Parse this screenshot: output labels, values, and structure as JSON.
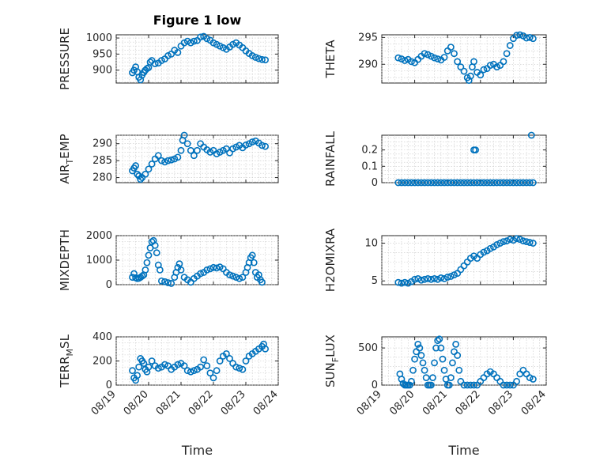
{
  "figure": {
    "title": "Figure 1 low",
    "marker_color": "#0072BD"
  },
  "chart_data": [
    {
      "type": "scatter",
      "ylabel": "PRESSURE",
      "ylim": [
        860,
        1010
      ],
      "yticks": [
        900,
        950,
        1000
      ],
      "xlim": [
        0,
        5
      ],
      "xlabel": "",
      "grid": true,
      "title": "Figure 1 low",
      "series": [
        {
          "x": [
            0.5,
            0.55,
            0.6,
            0.65,
            0.7,
            0.75,
            0.8,
            0.85,
            0.9,
            0.95,
            1.0,
            1.05,
            1.1,
            1.2,
            1.3,
            1.4,
            1.5,
            1.6,
            1.7,
            1.8,
            1.9,
            2.0,
            2.1,
            2.2,
            2.3,
            2.4,
            2.5,
            2.6,
            2.7,
            2.8,
            2.9,
            3.0,
            3.1,
            3.2,
            3.3,
            3.4,
            3.5,
            3.6,
            3.7,
            3.8,
            3.9,
            4.0,
            4.1,
            4.2,
            4.3,
            4.4,
            4.5,
            4.6
          ],
          "y": [
            892,
            900,
            910,
            895,
            878,
            870,
            885,
            893,
            900,
            905,
            908,
            925,
            930,
            920,
            922,
            930,
            935,
            945,
            950,
            962,
            955,
            975,
            985,
            990,
            985,
            990,
            992,
            1003,
            1005,
            998,
            993,
            985,
            980,
            975,
            970,
            965,
            972,
            980,
            985,
            978,
            970,
            960,
            952,
            945,
            940,
            936,
            933,
            932
          ]
        }
      ]
    },
    {
      "type": "scatter",
      "ylabel": "THETA",
      "ylim": [
        286.5,
        295.5
      ],
      "yticks": [
        290,
        295
      ],
      "xlim": [
        0,
        5
      ],
      "xlabel": "",
      "grid": true,
      "series": [
        {
          "x": [
            0.5,
            0.6,
            0.7,
            0.8,
            0.9,
            1.0,
            1.1,
            1.2,
            1.3,
            1.4,
            1.5,
            1.6,
            1.7,
            1.8,
            1.9,
            2.0,
            2.1,
            2.2,
            2.3,
            2.4,
            2.5,
            2.6,
            2.65,
            2.7,
            2.75,
            2.8,
            2.9,
            3.0,
            3.1,
            3.2,
            3.3,
            3.4,
            3.5,
            3.6,
            3.7,
            3.8,
            3.9,
            4.0,
            4.1,
            4.2,
            4.3,
            4.4,
            4.5,
            4.6
          ],
          "y": [
            291.2,
            291.0,
            290.7,
            290.9,
            290.5,
            290.3,
            290.9,
            291.5,
            292.0,
            291.8,
            291.5,
            291.2,
            291.0,
            290.8,
            291.3,
            292.5,
            293.2,
            292.0,
            290.5,
            289.5,
            288.7,
            287.5,
            287.0,
            287.8,
            289.5,
            290.5,
            288.5,
            288.0,
            289.0,
            289.2,
            289.8,
            290.0,
            289.5,
            289.8,
            290.5,
            292.0,
            293.5,
            294.8,
            295.4,
            295.5,
            295.3,
            294.9,
            295.0,
            294.8
          ]
        }
      ]
    },
    {
      "type": "scatter",
      "ylabel": "AIR_TEMP",
      "ylim": [
        278.5,
        292.5
      ],
      "yticks": [
        280,
        285,
        290
      ],
      "xlim": [
        0,
        5
      ],
      "xlabel": "",
      "grid": true,
      "series": [
        {
          "x": [
            0.5,
            0.55,
            0.6,
            0.65,
            0.7,
            0.75,
            0.8,
            0.9,
            1.0,
            1.1,
            1.2,
            1.3,
            1.4,
            1.5,
            1.6,
            1.7,
            1.8,
            1.9,
            2.0,
            2.05,
            2.1,
            2.2,
            2.3,
            2.4,
            2.5,
            2.6,
            2.7,
            2.8,
            2.9,
            3.0,
            3.1,
            3.2,
            3.3,
            3.4,
            3.5,
            3.6,
            3.7,
            3.8,
            3.9,
            4.0,
            4.1,
            4.2,
            4.3,
            4.4,
            4.5,
            4.6
          ],
          "y": [
            282,
            282.8,
            283.5,
            281,
            280.5,
            279.5,
            280,
            281,
            282.5,
            284,
            285.5,
            286.5,
            285,
            284.6,
            285,
            285.2,
            285.5,
            286,
            288,
            291,
            292.5,
            290,
            288,
            286.5,
            288,
            290,
            289,
            288.2,
            287.5,
            288,
            287,
            287.5,
            288,
            288.5,
            287.3,
            288.5,
            289,
            289.5,
            288.8,
            289.6,
            290,
            290.5,
            290.8,
            290.2,
            289.5,
            289.2
          ]
        }
      ]
    },
    {
      "type": "scatter",
      "ylabel": "RAINFALL",
      "ylim": [
        0,
        0.29
      ],
      "yticks": [
        0,
        0.1,
        0.2
      ],
      "xlim": [
        0,
        5
      ],
      "xlabel": "",
      "grid": true,
      "series": [
        {
          "x": [
            0.5,
            0.6,
            0.7,
            0.8,
            0.9,
            1.0,
            1.1,
            1.2,
            1.3,
            1.4,
            1.5,
            1.6,
            1.7,
            1.8,
            1.9,
            2.0,
            2.1,
            2.2,
            2.3,
            2.4,
            2.5,
            2.6,
            2.7,
            2.8,
            2.9,
            3.0,
            3.1,
            3.2,
            3.3,
            3.4,
            3.5,
            3.6,
            3.7,
            3.8,
            3.9,
            4.0,
            4.1,
            4.2,
            4.3,
            4.4,
            4.5,
            4.6,
            2.8,
            2.85,
            4.55
          ],
          "y": [
            0,
            0,
            0,
            0,
            0,
            0,
            0,
            0,
            0,
            0,
            0,
            0,
            0,
            0,
            0,
            0,
            0,
            0,
            0,
            0,
            0,
            0,
            0,
            0,
            0,
            0,
            0,
            0,
            0,
            0,
            0,
            0,
            0,
            0,
            0,
            0,
            0,
            0,
            0,
            0,
            0,
            0,
            0.2,
            0.2,
            0.29
          ]
        }
      ]
    },
    {
      "type": "scatter",
      "ylabel": "MIXDEPTH",
      "ylim": [
        0,
        2000
      ],
      "yticks": [
        0,
        1000,
        2000
      ],
      "xlim": [
        0,
        5
      ],
      "xlabel": "",
      "grid": true,
      "series": [
        {
          "x": [
            0.5,
            0.55,
            0.6,
            0.65,
            0.7,
            0.75,
            0.8,
            0.85,
            0.9,
            0.95,
            1.0,
            1.05,
            1.1,
            1.15,
            1.2,
            1.25,
            1.3,
            1.35,
            1.4,
            1.5,
            1.6,
            1.7,
            1.8,
            1.85,
            1.9,
            1.95,
            2.0,
            2.1,
            2.2,
            2.3,
            2.4,
            2.5,
            2.6,
            2.7,
            2.8,
            2.9,
            3.0,
            3.1,
            3.2,
            3.3,
            3.4,
            3.5,
            3.6,
            3.7,
            3.8,
            3.9,
            4.0,
            4.05,
            4.1,
            4.15,
            4.2,
            4.25,
            4.3,
            4.35,
            4.4,
            4.45,
            4.5
          ],
          "y": [
            300,
            450,
            280,
            250,
            260,
            300,
            350,
            400,
            600,
            900,
            1200,
            1500,
            1750,
            1800,
            1600,
            1300,
            800,
            600,
            150,
            120,
            80,
            50,
            300,
            500,
            700,
            850,
            600,
            300,
            200,
            100,
            250,
            350,
            450,
            500,
            600,
            650,
            700,
            680,
            720,
            650,
            500,
            400,
            350,
            300,
            250,
            300,
            500,
            700,
            900,
            1100,
            1200,
            900,
            500,
            300,
            400,
            200,
            100
          ]
        }
      ]
    },
    {
      "type": "scatter",
      "ylabel": "H2OMIXRA",
      "ylim": [
        4.5,
        11
      ],
      "yticks": [
        5,
        10
      ],
      "xlim": [
        0,
        5
      ],
      "xlabel": "",
      "grid": true,
      "series": [
        {
          "x": [
            0.5,
            0.6,
            0.7,
            0.8,
            0.9,
            1.0,
            1.1,
            1.2,
            1.3,
            1.4,
            1.5,
            1.6,
            1.7,
            1.8,
            1.9,
            2.0,
            2.1,
            2.2,
            2.3,
            2.4,
            2.5,
            2.6,
            2.7,
            2.8,
            2.9,
            3.0,
            3.1,
            3.2,
            3.3,
            3.4,
            3.5,
            3.6,
            3.7,
            3.8,
            3.9,
            4.0,
            4.1,
            4.2,
            4.3,
            4.4,
            4.5,
            4.6
          ],
          "y": [
            4.8,
            4.7,
            4.8,
            4.7,
            4.9,
            5.2,
            5.3,
            5.1,
            5.2,
            5.3,
            5.2,
            5.3,
            5.2,
            5.4,
            5.3,
            5.5,
            5.6,
            5.8,
            6.0,
            6.5,
            7.0,
            7.5,
            8.0,
            8.3,
            8.0,
            8.5,
            8.8,
            9.0,
            9.3,
            9.5,
            9.8,
            10.0,
            10.2,
            10.3,
            10.5,
            10.4,
            10.6,
            10.5,
            10.3,
            10.2,
            10.1,
            10.0
          ]
        }
      ]
    },
    {
      "type": "scatter",
      "ylabel": "TERR_MSL",
      "ylim": [
        0,
        400
      ],
      "yticks": [
        0,
        200,
        400
      ],
      "xlim": [
        0,
        5
      ],
      "xlabel": "Time",
      "xticks": [
        "08/19",
        "08/20",
        "08/21",
        "08/22",
        "08/23",
        "08/24"
      ],
      "grid": true,
      "series": [
        {
          "x": [
            0.5,
            0.55,
            0.6,
            0.65,
            0.7,
            0.75,
            0.8,
            0.85,
            0.9,
            0.95,
            1.0,
            1.1,
            1.2,
            1.3,
            1.4,
            1.5,
            1.6,
            1.7,
            1.8,
            1.9,
            2.0,
            2.1,
            2.2,
            2.3,
            2.4,
            2.5,
            2.6,
            2.7,
            2.8,
            2.9,
            3.0,
            3.1,
            3.2,
            3.3,
            3.4,
            3.5,
            3.6,
            3.7,
            3.8,
            3.9,
            4.0,
            4.1,
            4.2,
            4.3,
            4.4,
            4.5,
            4.55,
            4.6
          ],
          "y": [
            120,
            60,
            40,
            80,
            150,
            220,
            200,
            180,
            130,
            110,
            150,
            200,
            160,
            140,
            150,
            170,
            160,
            130,
            150,
            170,
            180,
            160,
            120,
            110,
            120,
            130,
            150,
            210,
            160,
            100,
            60,
            120,
            200,
            240,
            260,
            220,
            180,
            150,
            140,
            130,
            200,
            240,
            260,
            280,
            300,
            320,
            340,
            300
          ]
        }
      ]
    },
    {
      "type": "scatter",
      "ylabel": "SUN_FLUX",
      "ylim": [
        0,
        650
      ],
      "yticks": [
        0,
        500
      ],
      "xlim": [
        0,
        5
      ],
      "xlabel": "Time",
      "xticks": [
        "08/19",
        "08/20",
        "08/21",
        "08/22",
        "08/23",
        "08/24"
      ],
      "grid": true,
      "series": [
        {
          "x": [
            0.55,
            0.6,
            0.65,
            0.7,
            0.75,
            0.8,
            0.85,
            0.9,
            0.95,
            1.0,
            1.05,
            1.1,
            1.15,
            1.2,
            1.25,
            1.3,
            1.35,
            1.4,
            1.45,
            1.5,
            1.55,
            1.6,
            1.65,
            1.7,
            1.75,
            1.8,
            1.85,
            1.9,
            1.95,
            2.0,
            2.05,
            2.1,
            2.15,
            2.2,
            2.25,
            2.3,
            2.35,
            2.4,
            2.5,
            2.6,
            2.7,
            2.8,
            2.9,
            3.0,
            3.1,
            3.2,
            3.3,
            3.4,
            3.5,
            3.6,
            3.7,
            3.8,
            3.9,
            4.0,
            4.1,
            4.2,
            4.3,
            4.4,
            4.5,
            4.6
          ],
          "y": [
            150,
            80,
            20,
            0,
            0,
            0,
            0,
            50,
            200,
            350,
            450,
            550,
            500,
            400,
            300,
            200,
            100,
            0,
            0,
            0,
            100,
            300,
            500,
            600,
            620,
            500,
            350,
            200,
            80,
            0,
            0,
            100,
            300,
            450,
            550,
            400,
            200,
            50,
            0,
            0,
            0,
            0,
            0,
            50,
            100,
            150,
            180,
            150,
            100,
            50,
            0,
            0,
            0,
            0,
            50,
            150,
            200,
            150,
            100,
            80
          ]
        }
      ]
    }
  ]
}
